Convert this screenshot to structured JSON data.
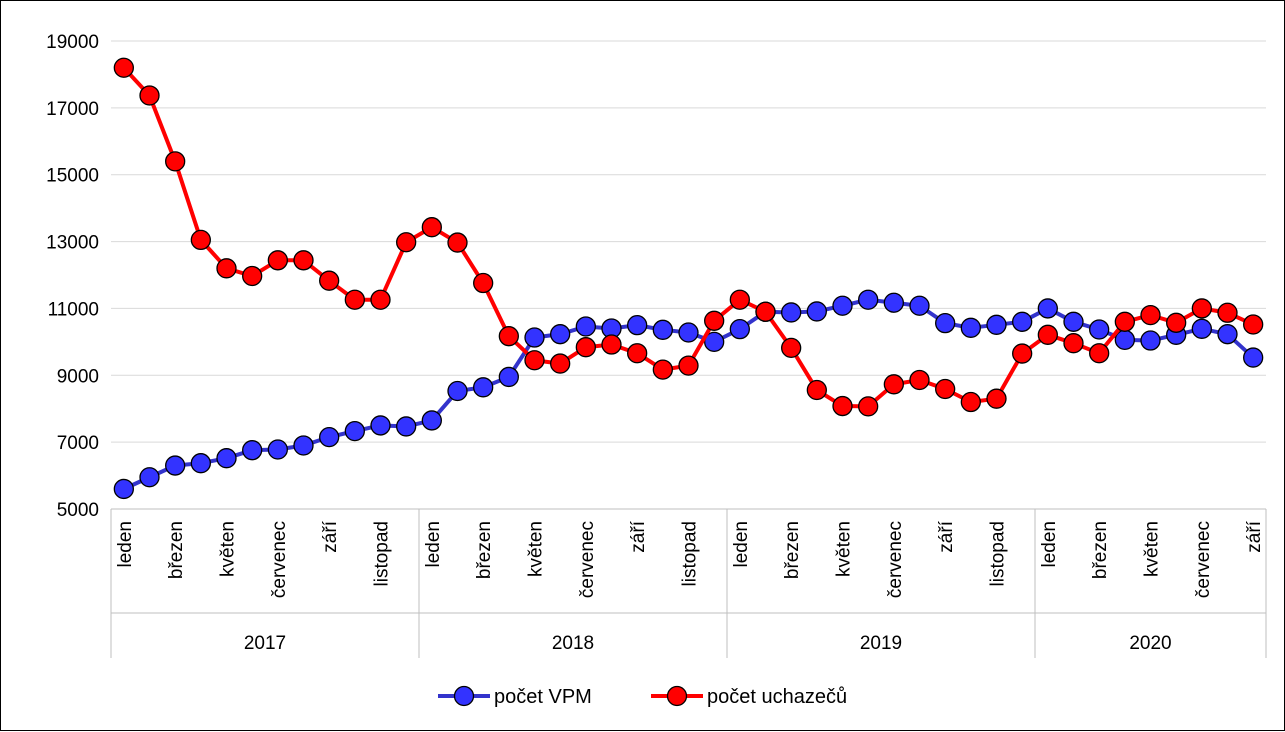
{
  "chart_data": {
    "type": "line",
    "title": "",
    "xlabel": "",
    "ylabel": "",
    "ylim": [
      5000,
      19000
    ],
    "yticks": [
      5000,
      7000,
      9000,
      11000,
      13000,
      15000,
      17000,
      19000
    ],
    "grid": "horizontal",
    "legend_position": "bottom",
    "years": [
      {
        "label": "2017",
        "months": 12
      },
      {
        "label": "2018",
        "months": 12
      },
      {
        "label": "2019",
        "months": 12
      },
      {
        "label": "2020",
        "months": 9
      }
    ],
    "category_labels": [
      "leden",
      "",
      "březen",
      "",
      "květen",
      "",
      "červenec",
      "",
      "září",
      "",
      "listopad",
      "",
      "leden",
      "",
      "březen",
      "",
      "květen",
      "",
      "červenec",
      "",
      "září",
      "",
      "listopad",
      "",
      "leden",
      "",
      "březen",
      "",
      "květen",
      "",
      "červenec",
      "",
      "září",
      "",
      "listopad",
      "",
      "leden",
      "",
      "březen",
      "",
      "květen",
      "",
      "červenec",
      "",
      "září"
    ],
    "series": [
      {
        "name": "počet VPM",
        "color": "#3333cc",
        "marker_fill": "#3333ff",
        "values": [
          5600,
          5950,
          6300,
          6370,
          6520,
          6760,
          6780,
          6900,
          7150,
          7330,
          7500,
          7470,
          7650,
          8530,
          8640,
          8950,
          10130,
          10230,
          10460,
          10400,
          10500,
          10360,
          10280,
          10000,
          10380,
          10900,
          10880,
          10910,
          11080,
          11260,
          11170,
          11080,
          10560,
          10420,
          10510,
          10600,
          11000,
          10600,
          10370,
          10060,
          10040,
          10210,
          10390,
          10230,
          9530
        ]
      },
      {
        "name": "počet uchazečů",
        "color": "#ff0000",
        "marker_fill": "#ff0000",
        "values": [
          18200,
          17370,
          15400,
          13050,
          12200,
          11970,
          12440,
          12440,
          11830,
          11260,
          11260,
          12980,
          13430,
          12970,
          11760,
          10170,
          9450,
          9350,
          9840,
          9920,
          9660,
          9170,
          9290,
          10630,
          11260,
          10900,
          9820,
          8560,
          8080,
          8070,
          8730,
          8860,
          8590,
          8200,
          8300,
          9650,
          10210,
          9960,
          9660,
          10600,
          10800,
          10570,
          11000,
          10870,
          10520
        ]
      }
    ]
  }
}
